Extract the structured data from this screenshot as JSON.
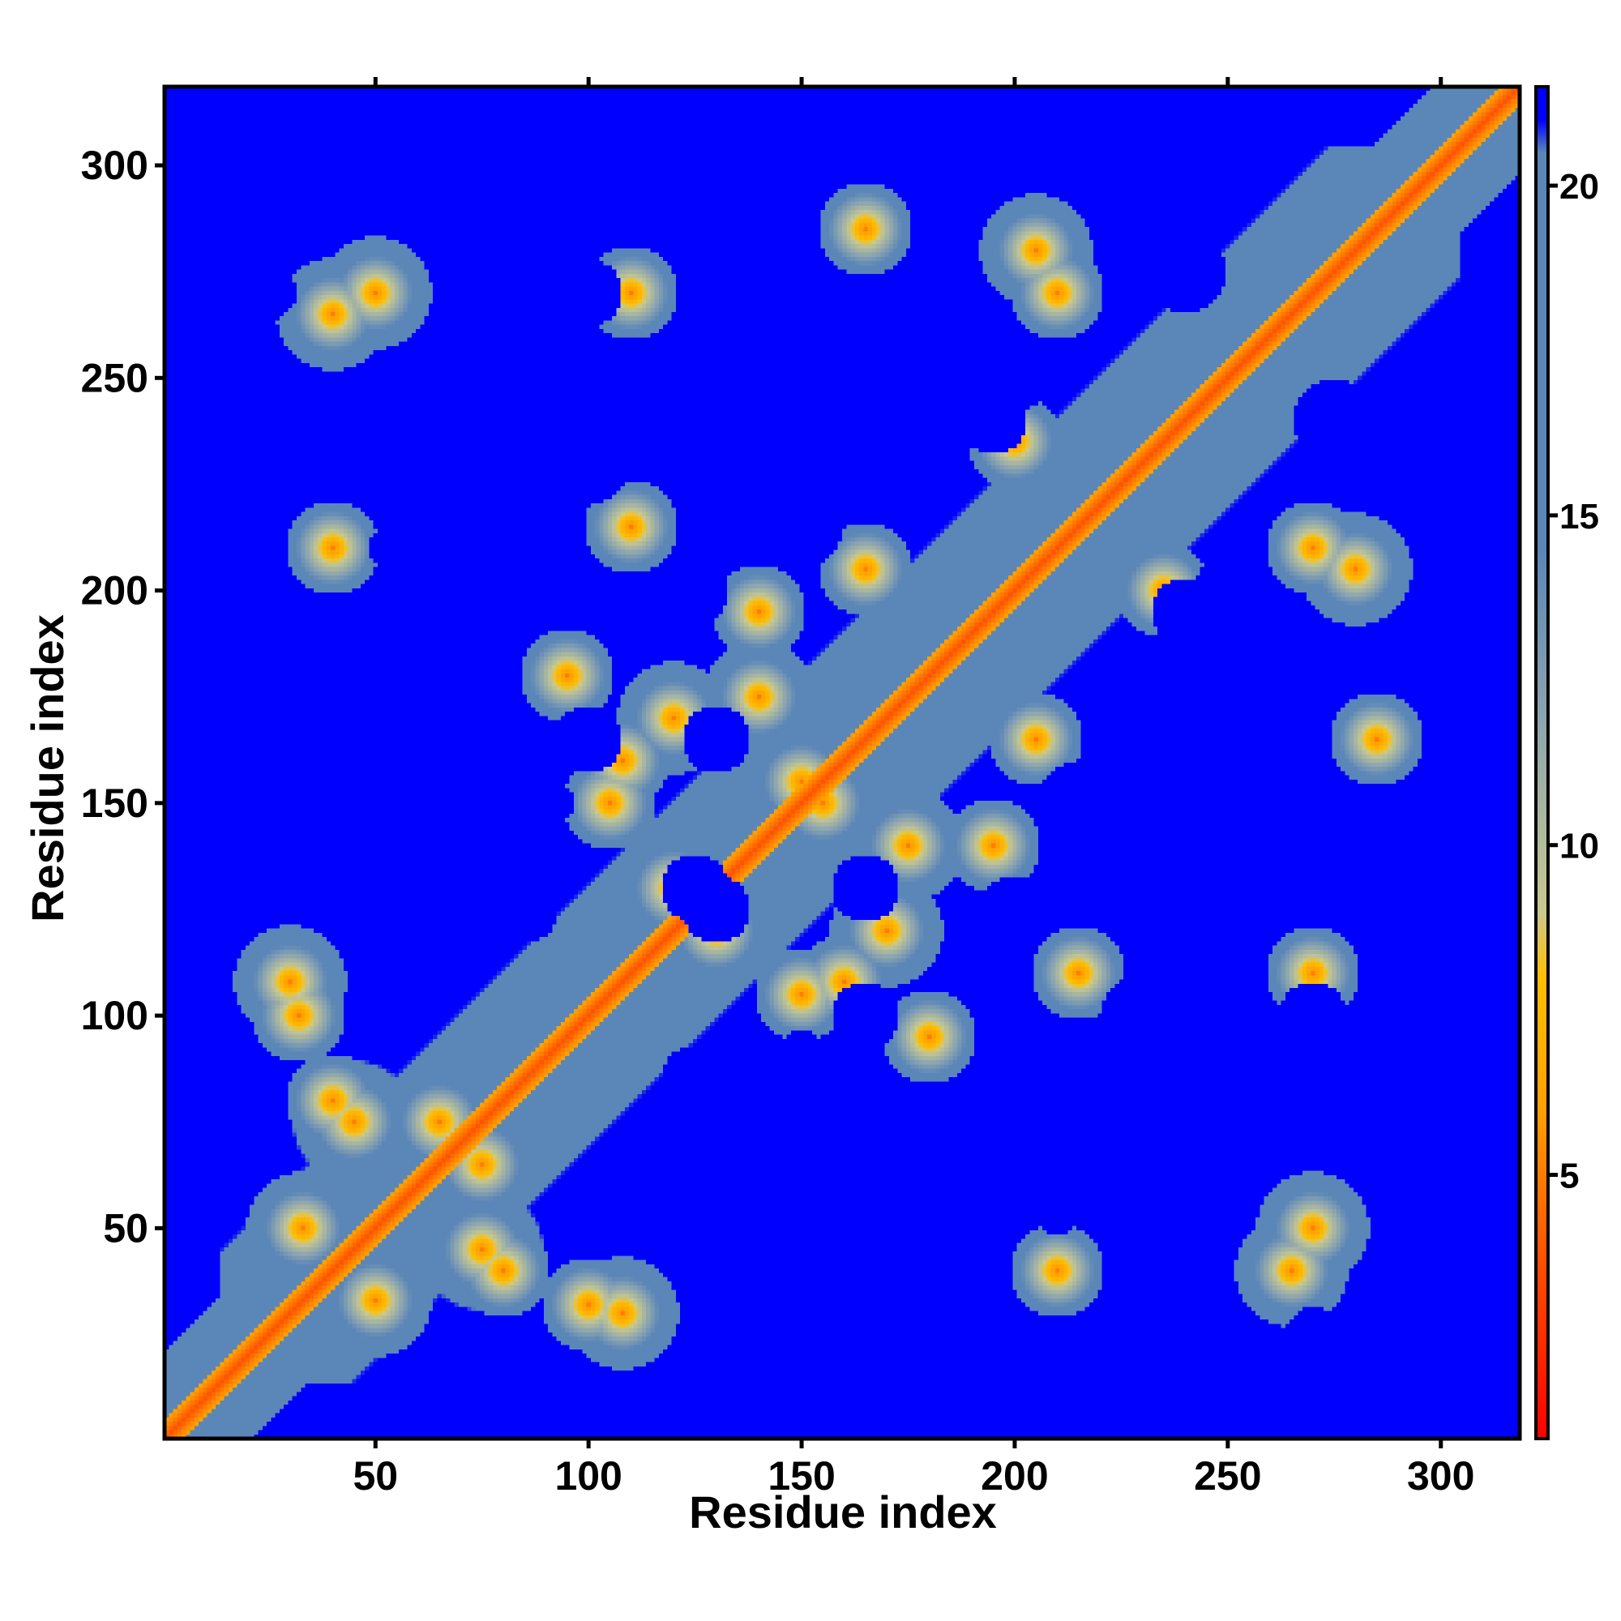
{
  "chart_data": {
    "type": "heatmap",
    "title": "",
    "xlabel": "Residue index",
    "ylabel": "Residue index",
    "n_residues": 318,
    "xlim": [
      1,
      318
    ],
    "ylim": [
      1,
      318
    ],
    "x_ticks": [
      50,
      100,
      150,
      200,
      250,
      300
    ],
    "y_ticks": [
      50,
      100,
      150,
      200,
      250,
      300
    ],
    "colorbar": {
      "ticks": [
        5,
        10,
        15,
        20
      ],
      "range": [
        1,
        21.5
      ],
      "scale": [
        {
          "value": 1,
          "color": "#ff0000"
        },
        {
          "value": 4,
          "color": "#ff5a00"
        },
        {
          "value": 6,
          "color": "#ffa000"
        },
        {
          "value": 8,
          "color": "#ffc000"
        },
        {
          "value": 9,
          "color": "#c8c890"
        },
        {
          "value": 12,
          "color": "#8aa4b0"
        },
        {
          "value": 14.5,
          "color": "#5b86b8"
        },
        {
          "value": 20.5,
          "color": "#5b86b8"
        },
        {
          "value": 21,
          "color": "#0000ff"
        }
      ]
    },
    "description_values": {
      "diagonal_distance": 3.8,
      "background_distance": 21
    }
  }
}
